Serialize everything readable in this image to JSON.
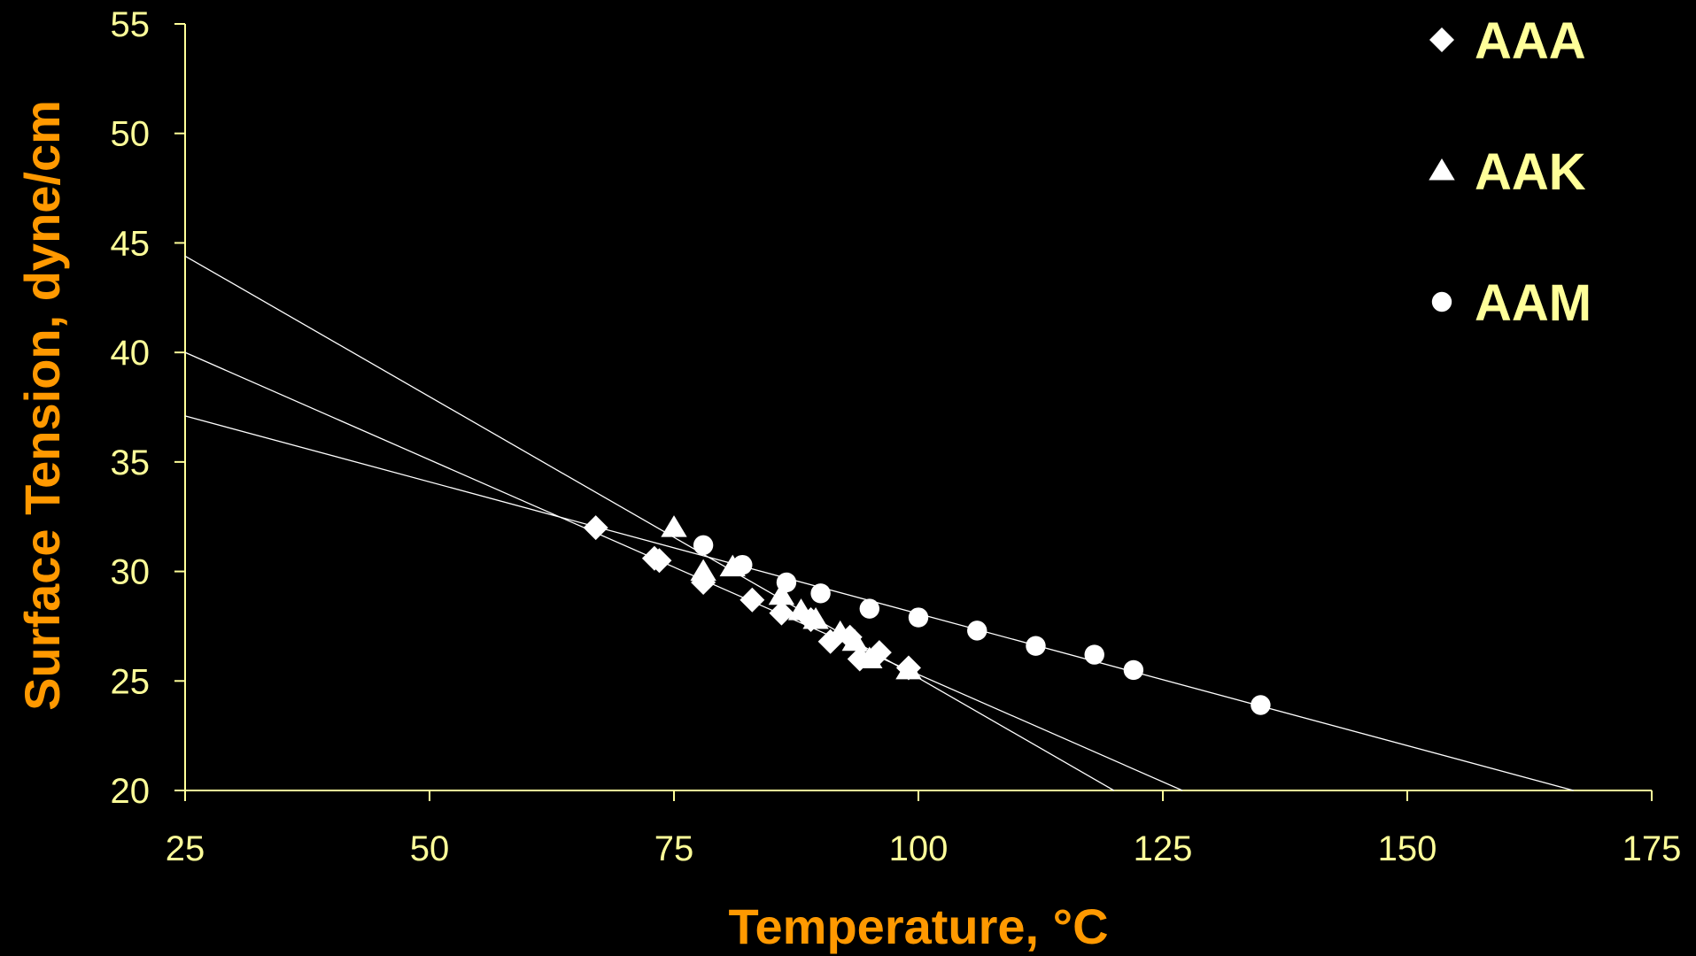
{
  "chart_data": {
    "type": "scatter",
    "title": "",
    "xlabel": "Temperature, °C",
    "ylabel": "Surface Tension, dyne/cm",
    "xlim": [
      25,
      175
    ],
    "ylim": [
      20,
      55
    ],
    "xticks": [
      25,
      50,
      75,
      100,
      125,
      150,
      175
    ],
    "yticks": [
      20,
      25,
      30,
      35,
      40,
      45,
      50,
      55
    ],
    "grid": false,
    "legend": "top-right",
    "colors": {
      "background": "#000000",
      "axis": "#ffff99",
      "marker": "#ffffff",
      "title": "#ff9900"
    },
    "series": [
      {
        "name": "AAA",
        "marker": "diamond",
        "points": [
          [
            67,
            32
          ],
          [
            73,
            30.6
          ],
          [
            73.5,
            30.5
          ],
          [
            78,
            29.5
          ],
          [
            83,
            28.7
          ],
          [
            86,
            28.1
          ],
          [
            89,
            27.8
          ],
          [
            91,
            26.8
          ],
          [
            93,
            27.0
          ],
          [
            94,
            26.0
          ],
          [
            96,
            26.3
          ],
          [
            99,
            25.6
          ]
        ],
        "trendline": [
          [
            25,
            40
          ],
          [
            127,
            20
          ]
        ]
      },
      {
        "name": "AAK",
        "marker": "triangle",
        "points": [
          [
            75,
            32
          ],
          [
            78,
            30
          ],
          [
            81,
            30.2
          ],
          [
            86,
            28.9
          ],
          [
            88,
            28.2
          ],
          [
            89.5,
            27.8
          ],
          [
            92,
            27.2
          ],
          [
            93.5,
            26.8
          ],
          [
            95,
            26.0
          ],
          [
            99,
            25.5
          ]
        ],
        "trendline": [
          [
            25,
            44.4
          ],
          [
            120,
            20
          ]
        ]
      },
      {
        "name": "AAM",
        "marker": "circle",
        "points": [
          [
            78,
            31.2
          ],
          [
            82,
            30.3
          ],
          [
            86.5,
            29.5
          ],
          [
            90,
            29.0
          ],
          [
            95,
            28.3
          ],
          [
            100,
            27.9
          ],
          [
            106,
            27.3
          ],
          [
            112,
            26.6
          ],
          [
            118,
            26.2
          ],
          [
            122,
            25.5
          ],
          [
            135,
            23.9
          ]
        ],
        "trendline": [
          [
            25,
            37.1
          ],
          [
            167,
            20
          ]
        ]
      }
    ]
  }
}
